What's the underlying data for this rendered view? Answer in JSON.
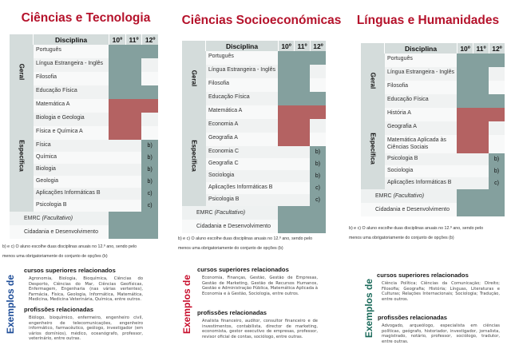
{
  "header_labels": {
    "disciplina": "Disciplina",
    "y10": "10º",
    "y11": "11º",
    "y12": "12º"
  },
  "colors": {
    "title_red": "#b5122b",
    "cell_green": "#84a09e",
    "cell_red": "#b46262",
    "exemplos_blue": "#1f4e99",
    "exemplos_red": "#c8102e",
    "exemplos_green": "#1c6b5b"
  },
  "panels": [
    {
      "title": "Ciências e Tecnologia",
      "group_geral": "Geral",
      "group_especifica": "Específica",
      "geral": [
        {
          "name": "Português",
          "cells": [
            "g",
            "g",
            "g"
          ]
        },
        {
          "name": "Língua Estrangeira - Inglês",
          "cells": [
            "g",
            "g",
            ""
          ]
        },
        {
          "name": "Filosofia",
          "cells": [
            "g",
            "g",
            ""
          ]
        },
        {
          "name": "Educação Física",
          "cells": [
            "g",
            "g",
            "g"
          ]
        }
      ],
      "especifica": [
        {
          "name": "Matemática A",
          "cells": [
            "r",
            "r",
            "r"
          ]
        },
        {
          "name": "Biologia e Geologia",
          "cells": [
            "r",
            "r",
            ""
          ]
        },
        {
          "name": "Física e Química A",
          "cells": [
            "r",
            "r",
            ""
          ]
        },
        {
          "name": "Física",
          "cells": [
            "",
            "",
            "g"
          ],
          "mark": "b)"
        },
        {
          "name": "Química",
          "cells": [
            "",
            "",
            "g"
          ],
          "mark": "b)"
        },
        {
          "name": "Biologia",
          "cells": [
            "",
            "",
            "g"
          ],
          "mark": "b)"
        },
        {
          "name": "Geologia",
          "cells": [
            "",
            "",
            "g"
          ],
          "mark": "b)"
        },
        {
          "name": "Aplicações Informáticas B",
          "cells": [
            "",
            "",
            "g"
          ],
          "mark": "c)"
        },
        {
          "name": "Psicologia B",
          "cells": [
            "",
            "",
            "g"
          ],
          "mark": "c)"
        }
      ],
      "extra": [
        {
          "name_plain": "EMRC ",
          "name_italic": "(Facultativo)",
          "cells": [
            "g",
            "g",
            "g"
          ]
        },
        {
          "name_plain": "Cidadania e Desenvolvimento",
          "name_italic": "",
          "cells": [
            "g",
            "g",
            "g"
          ]
        }
      ],
      "note_line1": "b) e c) O aluno escolhe duas disciplinas anuais no 12.º ano, sendo pelo",
      "note_line2": "menos uma obrigatoriamente do conjunto de opções (b)",
      "exemplos": "Exemplos de",
      "cursos_title": "cursos superiores relacionados",
      "cursos_text": "Agronomia, Biologia, Bioquímica, Ciências do Desporto, Ciências do Mar, Ciências Geofísicas, Enfermagem, Engenharia (nas várias vertentes), Farmácia, Física, Geologia, Informática, Matemática, Medicina, Medicina Veterinária, Química, entre outros.",
      "prof_title": "profissões relacionadas",
      "prof_text": "Biólogo, bioquímico, enfermeiro, engenheiro civil, engenheiro de telecomunicações, engenheiro informático, farmacêutico, geólogo, investigador (em vários domínios), médico, oceanógrafo, professor, veterinário, entre outras."
    },
    {
      "title": "Ciências Socioeconómicas",
      "group_geral": "Geral",
      "group_especifica": "Específica",
      "geral": [
        {
          "name": "Português",
          "cells": [
            "g",
            "g",
            "g"
          ]
        },
        {
          "name": "Língua Estrangeira - Inglês",
          "cells": [
            "g",
            "g",
            ""
          ]
        },
        {
          "name": "Filosofia",
          "cells": [
            "g",
            "g",
            ""
          ]
        },
        {
          "name": "Educação Física",
          "cells": [
            "g",
            "g",
            "g"
          ]
        }
      ],
      "especifica": [
        {
          "name": "Matemática A",
          "cells": [
            "r",
            "r",
            "r"
          ]
        },
        {
          "name": "Economia A",
          "cells": [
            "r",
            "r",
            ""
          ]
        },
        {
          "name": "Geografia A",
          "cells": [
            "r",
            "r",
            ""
          ]
        },
        {
          "name": "Economia C",
          "cells": [
            "",
            "",
            "g"
          ],
          "mark": "b)"
        },
        {
          "name": "Geografia C",
          "cells": [
            "",
            "",
            "g"
          ],
          "mark": "b)"
        },
        {
          "name": "Sociologia",
          "cells": [
            "",
            "",
            "g"
          ],
          "mark": "b)"
        },
        {
          "name": "Aplicações Informáticas B",
          "cells": [
            "",
            "",
            "g"
          ],
          "mark": "c)"
        },
        {
          "name": "Psicologia B",
          "cells": [
            "",
            "",
            "g"
          ],
          "mark": "c)"
        }
      ],
      "extra": [
        {
          "name_plain": "EMRC ",
          "name_italic": "(Facultativo)",
          "cells": [
            "g",
            "g",
            "g"
          ]
        },
        {
          "name_plain": "Cidadania e Desenvolvimento",
          "name_italic": "",
          "cells": [
            "g",
            "g",
            "g"
          ]
        }
      ],
      "note_line1": "b) e c) O aluno escolhe duas disciplinas anuais no 12.º ano, sendo pelo",
      "note_line2": "menos uma obrigatoriamente do conjunto de opções (b)",
      "exemplos": "Exemplos de",
      "cursos_title": "cursos superiores relacionados",
      "cursos_text": "Economia, Finanças, Gestão, Gestão de Empresas, Gestão de Marketing, Gestão de Recursos Humanos, Gestão e Administração Pública, Matemática Aplicada à Economia e à Gestão, Sociologia, entre outros.",
      "prof_title": "profissões relacionadas",
      "prof_text": "Analista financeiro, auditor, consultor financeiro e de investimentos, contabilista, director de marketing, economista, gestor executivo de empresas, professor, revisor oficial de contas, sociólogo, entre outras."
    },
    {
      "title": "Línguas e Humanidades",
      "group_geral": "Geral",
      "group_especifica": "Específica",
      "geral": [
        {
          "name": "Português",
          "cells": [
            "g",
            "g",
            "g"
          ]
        },
        {
          "name": "Língua Estrangeira - Inglês",
          "cells": [
            "g",
            "g",
            ""
          ]
        },
        {
          "name": "Filosofia",
          "cells": [
            "g",
            "g",
            ""
          ]
        },
        {
          "name": "Educação Física",
          "cells": [
            "g",
            "g",
            "g"
          ]
        }
      ],
      "especifica": [
        {
          "name": "História A",
          "cells": [
            "r",
            "r",
            "r"
          ]
        },
        {
          "name": "Geografia A",
          "cells": [
            "r",
            "r",
            ""
          ]
        },
        {
          "name": "Matemática Aplicada às Ciências Sociais",
          "cells": [
            "r",
            "r",
            ""
          ]
        },
        {
          "name": "Psicologia B",
          "cells": [
            "",
            "",
            "g"
          ],
          "mark": "b)"
        },
        {
          "name": "Sociologia",
          "cells": [
            "",
            "",
            "g"
          ],
          "mark": "b)"
        },
        {
          "name": "Aplicações Informáticas B",
          "cells": [
            "",
            "",
            "g"
          ],
          "mark": "c)"
        }
      ],
      "extra": [
        {
          "name_plain": "EMRC ",
          "name_italic": "(Facultativo)",
          "cells": [
            "g",
            "g",
            "g"
          ]
        },
        {
          "name_plain": "Cidadania e Desenvolvimento",
          "name_italic": "",
          "cells": [
            "g",
            "g",
            "g"
          ]
        }
      ],
      "note_line1": "b) e c) O aluno escolhe duas disciplinas anuais no 12.º ano, sendo pelo",
      "note_line2": "menos uma obrigatoriamente do conjunto de opções (b)",
      "exemplos": "Exemplos de",
      "cursos_title": "cursos superiores relacionados",
      "cursos_text": "Ciência Política; Ciências da Comunicação; Direito; Filosofia; Geografia; História; Línguas, Literaturas e Culturas; Relações Internacionais; Sociologia; Tradução, entre outros.",
      "prof_title": "profissões relacionadas",
      "prof_text": "Advogado, arqueólogo, especialista em ciências políticas, geógrafo, historiador, investigador, jornalista, magistrado, notário, professor, sociólogo, tradutor, entre outras."
    }
  ]
}
